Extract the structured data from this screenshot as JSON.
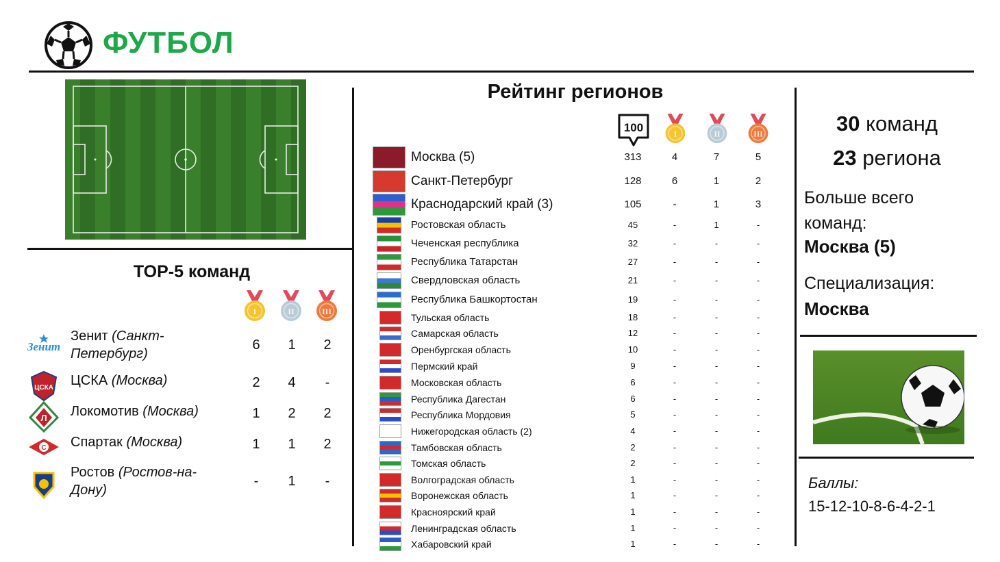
{
  "header": {
    "title": "ФУТБОЛ",
    "icon": "soccer-ball-icon"
  },
  "top5": {
    "title": "TOP-5 команд",
    "medal_icons": [
      "gold-medal-icon",
      "silver-medal-icon",
      "bronze-medal-icon"
    ],
    "teams": [
      {
        "name": "Зенит",
        "city": "(Санкт-Петербург)",
        "gold": "6",
        "silver": "1",
        "bronze": "2",
        "logo": "zenit-logo-icon"
      },
      {
        "name": "ЦСКА",
        "city": "(Москва)",
        "gold": "2",
        "silver": "4",
        "bronze": "-",
        "logo": "cska-logo-icon"
      },
      {
        "name": "Локомотив",
        "city": "(Москва)",
        "gold": "1",
        "silver": "2",
        "bronze": "2",
        "logo": "lokomotiv-logo-icon"
      },
      {
        "name": "Спартак",
        "city": "(Москва)",
        "gold": "1",
        "silver": "1",
        "bronze": "2",
        "logo": "spartak-logo-icon"
      },
      {
        "name": "Ростов",
        "city": "(Ростов-на-Дону)",
        "gold": "-",
        "silver": "1",
        "bronze": "-",
        "logo": "rostov-logo-icon"
      }
    ]
  },
  "rating": {
    "title": "Рейтинг регионов",
    "score_badge": "100",
    "medal_icons": [
      "gold-medal-icon",
      "silver-medal-icon",
      "bronze-medal-icon"
    ],
    "regions": [
      {
        "name": "Москва (5)",
        "points": "313",
        "gold": "4",
        "silver": "7",
        "bronze": "5",
        "flag": [
          "#8b1a2a",
          "#8b1a2a",
          "#8b1a2a"
        ]
      },
      {
        "name": "Санкт-Петербург",
        "points": "128",
        "gold": "6",
        "silver": "1",
        "bronze": "2",
        "flag": [
          "#d63a2e",
          "#d63a2e",
          "#d63a2e"
        ]
      },
      {
        "name": "Краснодарский край (3)",
        "points": "105",
        "gold": "-",
        "silver": "1",
        "bronze": "3",
        "flag": [
          "#2d5fd0",
          "#e0308a",
          "#2d9a3a"
        ]
      },
      {
        "name": "Ростовская область",
        "points": "45",
        "gold": "-",
        "silver": "1",
        "bronze": "-",
        "flag": [
          "#1b3fa0",
          "#f2c200",
          "#d22a2a"
        ]
      },
      {
        "name": "Чеченская республика",
        "points": "32",
        "gold": "-",
        "silver": "-",
        "bronze": "-",
        "flag": [
          "#2a8f3a",
          "#ffffff",
          "#c8252b"
        ]
      },
      {
        "name": "Республика Татарстан",
        "points": "27",
        "gold": "-",
        "silver": "-",
        "bronze": "-",
        "flag": [
          "#2a9a3a",
          "#ffffff",
          "#d22a2a"
        ]
      },
      {
        "name": "Свердловская область",
        "points": "21",
        "gold": "-",
        "silver": "-",
        "bronze": "-",
        "flag": [
          "#ffffff",
          "#3a7ad0",
          "#2a8a3a"
        ]
      },
      {
        "name": "Республика Башкортостан",
        "points": "19",
        "gold": "-",
        "silver": "-",
        "bronze": "-",
        "flag": [
          "#2a6fd0",
          "#ffffff",
          "#2a9a3a"
        ]
      },
      {
        "name": "Тульская область",
        "points": "18",
        "gold": "-",
        "silver": "-",
        "bronze": "-",
        "flag": [
          "#d62a2a",
          "#d62a2a",
          "#d62a2a"
        ]
      },
      {
        "name": "Самарская область",
        "points": "12",
        "gold": "-",
        "silver": "-",
        "bronze": "-",
        "flag": [
          "#d22a2a",
          "#ffffff",
          "#3a6ad0"
        ]
      },
      {
        "name": "Оренбургская область",
        "points": "10",
        "gold": "-",
        "silver": "-",
        "bronze": "-",
        "flag": [
          "#d22a2a",
          "#d22a2a",
          "#d22a2a"
        ]
      },
      {
        "name": "Пермский край",
        "points": "9",
        "gold": "-",
        "silver": "-",
        "bronze": "-",
        "flag": [
          "#d22a2a",
          "#ffffff",
          "#2a4ad0"
        ]
      },
      {
        "name": "Московская область",
        "points": "6",
        "gold": "-",
        "silver": "-",
        "bronze": "-",
        "flag": [
          "#d22a2a",
          "#d22a2a",
          "#d22a2a"
        ]
      },
      {
        "name": "Республика Дагестан",
        "points": "6",
        "gold": "-",
        "silver": "-",
        "bronze": "-",
        "flag": [
          "#2a9a3a",
          "#2a5ad0",
          "#d22a2a"
        ]
      },
      {
        "name": "Республика Мордовия",
        "points": "5",
        "gold": "-",
        "silver": "-",
        "bronze": "-",
        "flag": [
          "#d22a2a",
          "#ffffff",
          "#2a4ad0"
        ]
      },
      {
        "name": "Нижегородская область (2)",
        "points": "4",
        "gold": "-",
        "silver": "-",
        "bronze": "-",
        "flag": [
          "#ffffff",
          "#ffffff",
          "#ffffff"
        ]
      },
      {
        "name": "Тамбовская область",
        "points": "2",
        "gold": "-",
        "silver": "-",
        "bronze": "-",
        "flag": [
          "#2a6ad0",
          "#d22a2a",
          "#2a6ad0"
        ]
      },
      {
        "name": "Томская область",
        "points": "2",
        "gold": "-",
        "silver": "-",
        "bronze": "-",
        "flag": [
          "#ffffff",
          "#2a9a3a",
          "#ffffff"
        ]
      },
      {
        "name": "Волгоградская область",
        "points": "1",
        "gold": "-",
        "silver": "-",
        "bronze": "-",
        "flag": [
          "#d22a2a",
          "#d22a2a",
          "#d22a2a"
        ]
      },
      {
        "name": "Воронежская область",
        "points": "1",
        "gold": "-",
        "silver": "-",
        "bronze": "-",
        "flag": [
          "#d22a2a",
          "#f2c200",
          "#d22a2a"
        ]
      },
      {
        "name": "Красноярский край",
        "points": "1",
        "gold": "-",
        "silver": "-",
        "bronze": "-",
        "flag": [
          "#d22a2a",
          "#d22a2a",
          "#d22a2a"
        ]
      },
      {
        "name": "Ленинградская область",
        "points": "1",
        "gold": "-",
        "silver": "-",
        "bronze": "-",
        "flag": [
          "#ffffff",
          "#d22a2a",
          "#2a4ad0"
        ]
      },
      {
        "name": "Хабаровский край",
        "points": "1",
        "gold": "-",
        "silver": "-",
        "bronze": "-",
        "flag": [
          "#2a5ad0",
          "#ffffff",
          "#2a9a3a"
        ]
      }
    ]
  },
  "summary": {
    "teams": "30",
    "teams_word": "команд",
    "regions": "23",
    "regions_word": "региона",
    "most_label": "Больше всего команд:",
    "most_value": "Москва (5)",
    "spec_label": "Специализация:",
    "spec_value": "Москва",
    "score_label": "Баллы:",
    "score_value": "15-12-10-8-6-4-2-1"
  },
  "colors": {
    "title_green": "#1ea84a",
    "gold": "#f5c430",
    "silver": "#b9cbd6",
    "bronze": "#f07a3c",
    "ribbon": "#e04a5a"
  }
}
